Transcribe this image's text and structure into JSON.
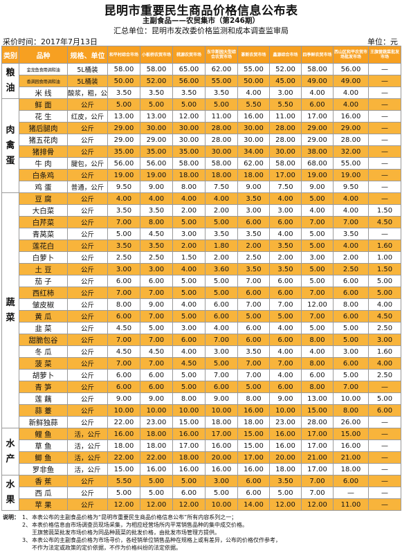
{
  "header": {
    "title": "昆明市重要民生商品价格信息公布表",
    "subtitle": "主副食品——农贸集市（第246期）",
    "summary": "汇总单位：昆明市发改委价格监测和成本调查监审局",
    "collect_time": "采价时间：2017年7月13日",
    "unit": "单位：元"
  },
  "table": {
    "columns": [
      "类别",
      "品种",
      "规格、单位",
      "和平村综合市场",
      "小板桥农贸市场",
      "桃源农贸市场",
      "东华斯园大型综合农贸市场",
      "篆新农贸市场",
      "鑫源综合市场",
      "四季鲜农贸市场",
      "西山区和平农贸市场批发市场",
      "王旗营蔬菜批发市场"
    ],
    "sections": [
      {
        "category": "粮油",
        "rows": [
          {
            "name": "金龙鱼食用调和油",
            "spec": "5L桶装",
            "prices": [
              "58.00",
              "58.00",
              "65.00",
              "62.00",
              "55.00",
              "52.00",
              "58.00",
              "56.00",
              "—"
            ]
          },
          {
            "name": "香满园食用调和油",
            "spec": "5L桶装",
            "prices": [
              "50.00",
              "52.00",
              "56.00",
              "55.00",
              "50.00",
              "45.00",
              "49.00",
              "49.00",
              "—"
            ]
          },
          {
            "name": "米 线",
            "spec": "酸浆，粗，公斤",
            "prices": [
              "3.50",
              "3.50",
              "3.50",
              "3.50",
              "4.00",
              "3.00",
              "4.00",
              "4.00",
              "—"
            ]
          }
        ]
      },
      {
        "category": "肉禽蛋",
        "rows": [
          {
            "name": "鲜 面",
            "spec": "公斤",
            "prices": [
              "5.00",
              "5.00",
              "5.00",
              "5.00",
              "5.50",
              "5.50",
              "6.00",
              "4.00",
              "—"
            ]
          },
          {
            "name": "花 生",
            "spec": "红皮，公斤",
            "prices": [
              "13.00",
              "13.00",
              "12.00",
              "11.00",
              "16.00",
              "11.00",
              "17.00",
              "16.00",
              "—"
            ]
          },
          {
            "name": "猪后腿肉",
            "spec": "公斤",
            "prices": [
              "29.00",
              "30.00",
              "30.00",
              "28.00",
              "30.00",
              "28.00",
              "29.00",
              "29.00",
              "—"
            ]
          },
          {
            "name": "猪五花肉",
            "spec": "公斤",
            "prices": [
              "29.00",
              "29.00",
              "30.00",
              "28.00",
              "30.00",
              "28.00",
              "29.00",
              "28.00",
              "—"
            ]
          },
          {
            "name": "猪排骨",
            "spec": "公斤",
            "prices": [
              "35.00",
              "35.00",
              "35.00",
              "30.00",
              "34.00",
              "30.00",
              "38.00",
              "32.00",
              "—"
            ]
          },
          {
            "name": "牛 肉",
            "spec": "腱包，公斤",
            "prices": [
              "56.00",
              "56.00",
              "58.00",
              "58.00",
              "62.00",
              "58.00",
              "68.00",
              "55.00",
              "—"
            ]
          },
          {
            "name": "白条鸡",
            "spec": "公斤",
            "prices": [
              "19.00",
              "19.00",
              "18.00",
              "18.00",
              "18.00",
              "17.00",
              "19.00",
              "19.00",
              "—"
            ]
          },
          {
            "name": "鸡 蛋",
            "spec": "普通，公斤",
            "prices": [
              "9.50",
              "9.00",
              "8.00",
              "7.50",
              "9.00",
              "7.50",
              "9.00",
              "9.50",
              "—"
            ]
          }
        ]
      },
      {
        "category": "蔬菜",
        "rows": [
          {
            "name": "豆 腐",
            "spec": "公斤",
            "prices": [
              "4.00",
              "4.00",
              "4.00",
              "4.00",
              "3.50",
              "4.00",
              "5.00",
              "4.00",
              "—"
            ]
          },
          {
            "name": "大白菜",
            "spec": "公斤",
            "prices": [
              "3.50",
              "3.50",
              "2.00",
              "2.00",
              "3.00",
              "3.00",
              "4.00",
              "4.00",
              "1.50"
            ]
          },
          {
            "name": "白芹菜",
            "spec": "公斤",
            "prices": [
              "7.00",
              "8.00",
              "5.00",
              "5.00",
              "6.00",
              "6.00",
              "7.00",
              "7.00",
              "4.50"
            ]
          },
          {
            "name": "青莴菜",
            "spec": "公斤",
            "prices": [
              "5.00",
              "4.50",
              "3.00",
              "3.50",
              "3.50",
              "4.00",
              "5.00",
              "3.50",
              "—"
            ]
          },
          {
            "name": "莲花白",
            "spec": "公斤",
            "prices": [
              "3.50",
              "3.50",
              "2.00",
              "1.80",
              "2.00",
              "3.50",
              "5.00",
              "4.00",
              "1.60"
            ]
          },
          {
            "name": "白萝卜",
            "spec": "公斤",
            "prices": [
              "2.50",
              "2.50",
              "1.50",
              "2.00",
              "2.50",
              "2.00",
              "3.00",
              "2.00",
              "1.00"
            ]
          },
          {
            "name": "土 豆",
            "spec": "公斤",
            "prices": [
              "3.00",
              "3.00",
              "4.00",
              "3.60",
              "3.50",
              "3.50",
              "5.00",
              "2.50",
              "1.50"
            ]
          },
          {
            "name": "茄 子",
            "spec": "公斤",
            "prices": [
              "6.00",
              "6.00",
              "5.00",
              "5.00",
              "7.00",
              "6.00",
              "5.00",
              "6.00",
              "5.00"
            ]
          },
          {
            "name": "西红柿",
            "spec": "公斤",
            "prices": [
              "7.00",
              "7.00",
              "5.00",
              "5.00",
              "6.00",
              "6.00",
              "7.00",
              "6.00",
              "5.00"
            ]
          },
          {
            "name": "皱皮椒",
            "spec": "公斤",
            "prices": [
              "8.00",
              "9.00",
              "4.00",
              "6.00",
              "7.00",
              "7.00",
              "12.00",
              "8.00",
              "4.00"
            ]
          },
          {
            "name": "黄 瓜",
            "spec": "公斤",
            "prices": [
              "6.00",
              "7.00",
              "5.00",
              "6.00",
              "5.00",
              "5.00",
              "7.00",
              "6.00",
              "4.50"
            ]
          },
          {
            "name": "韭 菜",
            "spec": "公斤",
            "prices": [
              "4.50",
              "5.00",
              "3.00",
              "4.00",
              "6.00",
              "4.00",
              "5.00",
              "5.00",
              "2.50"
            ]
          },
          {
            "name": "甜脆包谷",
            "spec": "公斤",
            "prices": [
              "7.00",
              "7.00",
              "6.00",
              "7.00",
              "6.00",
              "6.00",
              "8.00",
              "5.00",
              "3.00"
            ]
          },
          {
            "name": "冬 瓜",
            "spec": "公斤",
            "prices": [
              "4.50",
              "4.50",
              "4.00",
              "3.00",
              "3.50",
              "4.00",
              "4.00",
              "3.00",
              "1.60"
            ]
          },
          {
            "name": "菠 菜",
            "spec": "公斤",
            "prices": [
              "7.00",
              "7.00",
              "4.50",
              "5.00",
              "7.00",
              "7.00",
              "8.00",
              "6.00",
              "4.00"
            ]
          },
          {
            "name": "胡萝卜",
            "spec": "公斤",
            "prices": [
              "6.00",
              "6.00",
              "5.00",
              "7.00",
              "7.00",
              "4.00",
              "6.00",
              "5.00",
              "2.50"
            ]
          },
          {
            "name": "青 笋",
            "spec": "公斤",
            "prices": [
              "6.00",
              "6.00",
              "5.00",
              "6.00",
              "5.00",
              "6.00",
              "8.00",
              "7.00",
              "—"
            ]
          },
          {
            "name": "莲 藕",
            "spec": "公斤",
            "prices": [
              "9.00",
              "9.00",
              "8.00",
              "9.00",
              "8.00",
              "9.00",
              "13.00",
              "10.00",
              "5.00"
            ]
          },
          {
            "name": "蒜 薹",
            "spec": "公斤",
            "prices": [
              "10.00",
              "10.00",
              "10.00",
              "10.00",
              "16.00",
              "10.00",
              "15.00",
              "8.00",
              "6.00"
            ]
          },
          {
            "name": "新鲜独蒜",
            "spec": "公斤",
            "prices": [
              "22.00",
              "23.00",
              "15.00",
              "18.00",
              "18.00",
              "23.00",
              "28.00",
              "26.00",
              "—"
            ]
          }
        ]
      },
      {
        "category": "水产",
        "rows": [
          {
            "name": "鲤 鱼",
            "spec": "活，公斤",
            "prices": [
              "16.00",
              "18.00",
              "16.00",
              "17.00",
              "15.00",
              "16.00",
              "17.00",
              "15.00",
              "—"
            ]
          },
          {
            "name": "草 鱼",
            "spec": "活，公斤",
            "prices": [
              "18.00",
              "18.00",
              "17.00",
              "16.00",
              "15.00",
              "16.00",
              "17.00",
              "16.00",
              "—"
            ]
          },
          {
            "name": "鲫 鱼",
            "spec": "活，公斤",
            "prices": [
              "22.00",
              "22.00",
              "18.00",
              "20.00",
              "17.00",
              "20.00",
              "21.00",
              "21.00",
              "—"
            ]
          },
          {
            "name": "罗非鱼",
            "spec": "活，公斤",
            "prices": [
              "15.00",
              "16.00",
              "16.00",
              "16.00",
              "16.00",
              "18.00",
              "17.00",
              "18.00",
              "—"
            ]
          }
        ]
      },
      {
        "category": "水果",
        "rows": [
          {
            "name": "香 蕉",
            "spec": "公斤",
            "prices": [
              "5.50",
              "5.00",
              "5.00",
              "3.00",
              "6.00",
              "3.50",
              "7.00",
              "6.00",
              "—"
            ]
          },
          {
            "name": "西 瓜",
            "spec": "公斤",
            "prices": [
              "5.00",
              "5.00",
              "6.00",
              "5.00",
              "6.00",
              "5.00",
              "7.00",
              "—",
              "—"
            ]
          },
          {
            "name": "苹 果",
            "spec": "公斤",
            "prices": [
              "12.00",
              "12.00",
              "12.00",
              "10.00",
              "14.00",
              "12.00",
              "12.00",
              "11.00",
              "—"
            ]
          }
        ]
      }
    ]
  },
  "notes": {
    "label": "说明：",
    "items": [
      {
        "num": "1、",
        "text": "本表公布的主副食品价格为“昆明市重要民生商品价格信息公布”所有内容系列之一；"
      },
      {
        "num": "2、",
        "text": "本表价格信息由市场调查员现场采集，为相应经营场所内平常销售品种的集中成交价格。"
      },
      {
        "num": "",
        "text": "王旗营蔬菜批发市场价格为同品种蔬菜的批发价格，由批发市场管理方提供。"
      },
      {
        "num": "3、",
        "text": "本表公布的主副食品价格为市场寻价，各经销单位销售品种在规格上或有差异，公布的价格仅作参考，"
      },
      {
        "num": "",
        "text": "不作为法定或政策的定价依据，不作为价格纠纷的法定依据。"
      }
    ]
  },
  "colors": {
    "header_bg": "#f7a021",
    "alt_row_bg": "#f8b43b"
  }
}
